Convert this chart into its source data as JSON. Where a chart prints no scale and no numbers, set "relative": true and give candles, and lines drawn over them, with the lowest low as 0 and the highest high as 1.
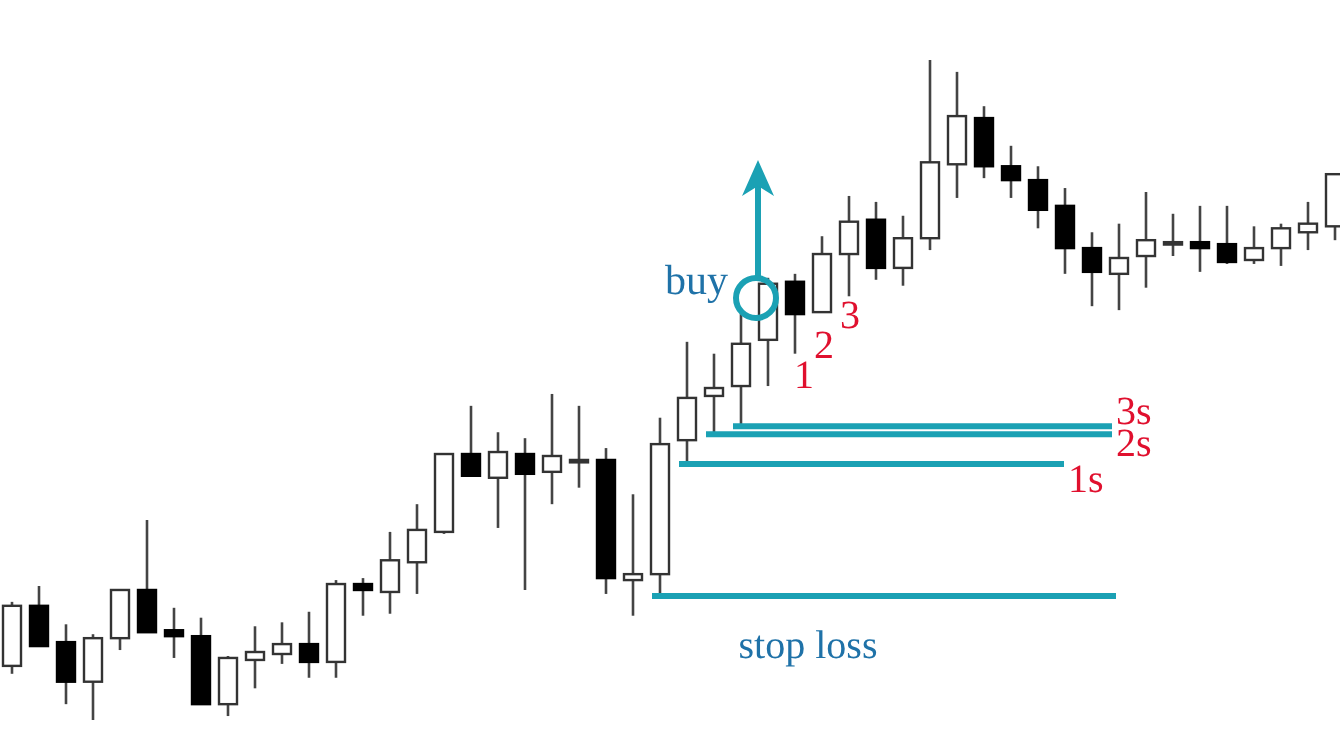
{
  "chart_data": {
    "type": "candlestick",
    "relative": true,
    "categories": [
      null,
      null,
      null,
      null,
      null,
      null,
      null,
      null,
      null,
      null,
      null,
      null,
      null,
      null,
      null,
      null,
      null,
      null,
      null,
      null,
      null,
      null,
      null,
      null,
      null,
      null,
      null,
      null,
      null,
      null,
      null,
      null,
      null,
      null,
      null,
      null,
      null,
      null,
      null,
      null,
      null,
      null,
      null,
      null,
      null,
      null,
      null,
      null,
      null,
      null
    ],
    "ohlc": [
      [
        0.082,
        0.179,
        0.07,
        0.173
      ],
      [
        0.173,
        0.203,
        0.112,
        0.112
      ],
      [
        0.118,
        0.145,
        0.024,
        0.058
      ],
      [
        0.058,
        0.13,
        0,
        0.124
      ],
      [
        0.124,
        0.197,
        0.106,
        0.197
      ],
      [
        0.197,
        0.303,
        0.133,
        0.133
      ],
      [
        0.136,
        0.17,
        0.094,
        0.127
      ],
      [
        0.127,
        0.155,
        0.024,
        0.024
      ],
      [
        0.024,
        0.097,
        0.006,
        0.094
      ],
      [
        0.091,
        0.142,
        0.048,
        0.103
      ],
      [
        0.1,
        0.148,
        0.085,
        0.115
      ],
      [
        0.115,
        0.164,
        0.064,
        0.088
      ],
      [
        0.088,
        0.212,
        0.064,
        0.206
      ],
      [
        0.206,
        0.215,
        0.158,
        0.197
      ],
      [
        0.194,
        0.285,
        0.161,
        0.242
      ],
      [
        0.239,
        0.327,
        0.191,
        0.288
      ],
      [
        0.285,
        0.403,
        0.282,
        0.403
      ],
      [
        0.403,
        0.476,
        0.37,
        0.37
      ],
      [
        0.367,
        0.436,
        0.291,
        0.406
      ],
      [
        0.403,
        0.427,
        0.197,
        0.373
      ],
      [
        0.376,
        0.494,
        0.327,
        0.4
      ],
      [
        0.394,
        0.476,
        0.352,
        0.394
      ],
      [
        0.394,
        0.412,
        0.191,
        0.215
      ],
      [
        0.212,
        0.342,
        0.158,
        0.221
      ],
      [
        0.221,
        0.458,
        0.188,
        0.418
      ],
      [
        0.424,
        0.573,
        0.388,
        0.488
      ],
      [
        0.491,
        0.555,
        0.433,
        0.503
      ],
      [
        0.506,
        0.615,
        0.445,
        0.57
      ],
      [
        0.576,
        0.67,
        0.506,
        0.661
      ],
      [
        0.664,
        0.676,
        0.555,
        0.615
      ],
      [
        0.618,
        0.733,
        0.618,
        0.706
      ],
      [
        0.706,
        0.794,
        0.642,
        0.755
      ],
      [
        0.758,
        0.785,
        0.667,
        0.685
      ],
      [
        0.685,
        0.764,
        0.658,
        0.73
      ],
      [
        0.73,
        1,
        0.712,
        0.845
      ],
      [
        0.842,
        0.982,
        0.791,
        0.915
      ],
      [
        0.912,
        0.93,
        0.821,
        0.839
      ],
      [
        0.839,
        0.87,
        0.791,
        0.818
      ],
      [
        0.818,
        0.839,
        0.745,
        0.773
      ],
      [
        0.779,
        0.806,
        0.676,
        0.715
      ],
      [
        0.715,
        0.739,
        0.627,
        0.679
      ],
      [
        0.676,
        0.752,
        0.621,
        0.7
      ],
      [
        0.703,
        0.8,
        0.655,
        0.727
      ],
      [
        0.724,
        0.767,
        0.703,
        0.724
      ],
      [
        0.724,
        0.779,
        0.679,
        0.715
      ],
      [
        0.721,
        0.779,
        0.691,
        0.694
      ],
      [
        0.697,
        0.748,
        0.691,
        0.715
      ],
      [
        0.715,
        0.752,
        0.688,
        0.745
      ],
      [
        0.739,
        0.785,
        0.712,
        0.752
      ],
      [
        0.748,
        0.827,
        0.727,
        0.827
      ]
    ],
    "ref_lines": [
      {
        "axis": "y",
        "value": 0.188,
        "label": "stop loss",
        "color": "#1ba1b4"
      },
      {
        "axis": "y",
        "value": 0.388,
        "label": "1s",
        "color": "#1ba1b4"
      },
      {
        "axis": "y",
        "value": 0.433,
        "label": "2s",
        "color": "#1ba1b4"
      },
      {
        "axis": "y",
        "value": 0.445,
        "label": "3s",
        "color": "#1ba1b4"
      }
    ],
    "annotations": [
      "buy",
      "1",
      "2",
      "3"
    ]
  }
}
